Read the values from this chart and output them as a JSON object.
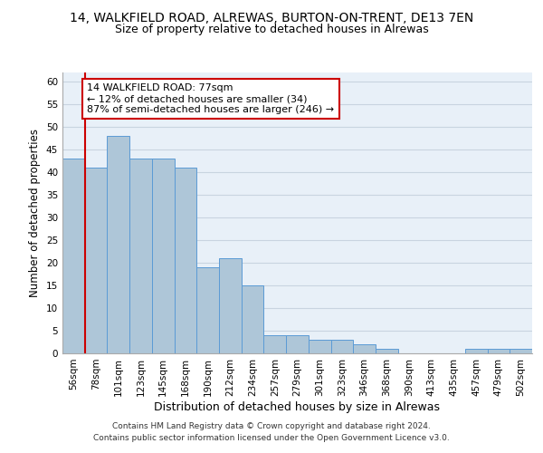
{
  "title1": "14, WALKFIELD ROAD, ALREWAS, BURTON-ON-TRENT, DE13 7EN",
  "title2": "Size of property relative to detached houses in Alrewas",
  "xlabel": "Distribution of detached houses by size in Alrewas",
  "ylabel": "Number of detached properties",
  "categories": [
    "56sqm",
    "78sqm",
    "101sqm",
    "123sqm",
    "145sqm",
    "168sqm",
    "190sqm",
    "212sqm",
    "234sqm",
    "257sqm",
    "279sqm",
    "301sqm",
    "323sqm",
    "346sqm",
    "368sqm",
    "390sqm",
    "413sqm",
    "435sqm",
    "457sqm",
    "479sqm",
    "502sqm"
  ],
  "values": [
    43,
    41,
    48,
    43,
    43,
    41,
    19,
    21,
    15,
    4,
    4,
    3,
    3,
    2,
    1,
    0,
    0,
    0,
    1,
    1,
    1
  ],
  "bar_color": "#aec6d8",
  "bar_edge_color": "#5b9bd5",
  "property_line_x": 0.5,
  "annotation_text": "14 WALKFIELD ROAD: 77sqm\n← 12% of detached houses are smaller (34)\n87% of semi-detached houses are larger (246) →",
  "annotation_box_color": "#ffffff",
  "annotation_box_edge": "#cc0000",
  "property_line_color": "#cc0000",
  "ylim": [
    0,
    62
  ],
  "yticks": [
    0,
    5,
    10,
    15,
    20,
    25,
    30,
    35,
    40,
    45,
    50,
    55,
    60
  ],
  "grid_color": "#c8d4e0",
  "bg_color": "#e8f0f8",
  "footer1": "Contains HM Land Registry data © Crown copyright and database right 2024.",
  "footer2": "Contains public sector information licensed under the Open Government Licence v3.0.",
  "title1_fontsize": 10,
  "title2_fontsize": 9,
  "xlabel_fontsize": 9,
  "ylabel_fontsize": 8.5,
  "tick_fontsize": 7.5,
  "annotation_fontsize": 8,
  "footer_fontsize": 6.5
}
